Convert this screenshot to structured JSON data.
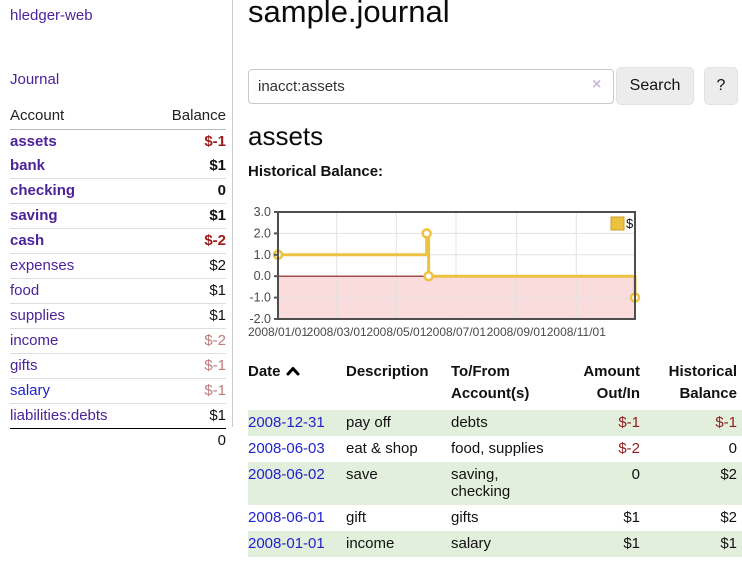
{
  "app": {
    "brand": "hledger-web",
    "nav": {
      "journal": "Journal"
    }
  },
  "sidebar": {
    "header": {
      "account": "Account",
      "balance": "Balance"
    },
    "accounts": [
      {
        "name": "assets",
        "balance": "$-1",
        "row_class": "lvl1 bold",
        "amt_class": "amt-negb"
      },
      {
        "name": "bank",
        "balance": "$1",
        "row_class": "lvl2 bold",
        "amt_class": "amt-b"
      },
      {
        "name": "checking",
        "balance": "0",
        "row_class": "lvl3 bold",
        "amt_class": "amt-b"
      },
      {
        "name": "saving",
        "balance": "$1",
        "row_class": "lvl3 bold",
        "amt_class": "amt-b"
      },
      {
        "name": "cash",
        "balance": "$-2",
        "row_class": "lvl2 bold",
        "amt_class": "amt-negb"
      },
      {
        "name": "expenses",
        "balance": "$2",
        "row_class": "lvl1",
        "amt_class": "amt"
      },
      {
        "name": "food",
        "balance": "$1",
        "row_class": "lvl2",
        "amt_class": "amt"
      },
      {
        "name": "supplies",
        "balance": "$1",
        "row_class": "lvl2",
        "amt_class": "amt"
      },
      {
        "name": "income",
        "balance": "$-2",
        "row_class": "lvl1",
        "amt_class": "amt-negl"
      },
      {
        "name": "gifts",
        "balance": "$-1",
        "row_class": "lvl2",
        "amt_class": "amt-negl"
      },
      {
        "name": "salary",
        "balance": "$-1",
        "row_class": "lvl2 blue-link",
        "amt_class": "amt-negl"
      },
      {
        "name": "liabilities:debts",
        "balance": "$1",
        "row_class": "lvl1",
        "amt_class": "amt"
      }
    ],
    "total": "0"
  },
  "main": {
    "title": "sample.journal",
    "search": {
      "value": "inacct:assets",
      "clear_icon": "×",
      "button_label": "Search",
      "help_label": "?"
    },
    "account_heading": "assets",
    "chart_label": "Historical Balance:"
  },
  "chart_data": {
    "type": "line",
    "step": true,
    "title": "Historical Balance:",
    "x_domain": [
      "2008-01-01",
      "2008-12-31"
    ],
    "x_ticks": [
      {
        "date": "2008-01-01",
        "label": "2008/01/01"
      },
      {
        "date": "2008-03-01",
        "label": "2008/03/01"
      },
      {
        "date": "2008-05-01",
        "label": "2008/05/01"
      },
      {
        "date": "2008-07-01",
        "label": "2008/07/01"
      },
      {
        "date": "2008-09-01",
        "label": "2008/09/01"
      },
      {
        "date": "2008-11-01",
        "label": "2008/11/01"
      }
    ],
    "y_ticks": [
      {
        "value": 3,
        "label": "3.0"
      },
      {
        "value": 2,
        "label": "2.0"
      },
      {
        "value": 1,
        "label": "1.0"
      },
      {
        "value": 0,
        "label": "0.0"
      },
      {
        "value": -1,
        "label": "-1.0"
      },
      {
        "value": -2,
        "label": "-2.0"
      }
    ],
    "ylim": [
      -2,
      3
    ],
    "series": [
      {
        "name": "$",
        "color": "#edc240",
        "marker_fill": "#ffffff",
        "points": [
          {
            "date": "2008-01-01",
            "value": 1
          },
          {
            "date": "2008-06-01",
            "value": 2
          },
          {
            "date": "2008-06-03",
            "value": 0
          },
          {
            "date": "2008-12-31",
            "value": -1
          }
        ]
      }
    ],
    "legend": {
      "label": "$",
      "color": "#edc240",
      "position": "top-right"
    },
    "negative_region_fill": "#fadcdc",
    "zero_line_color": "#8b1a1a",
    "grid_color": "#e0e0e0",
    "border_color": "#4d4d4d",
    "tick_label_color": "#4a4a4a",
    "grid": true
  },
  "register": {
    "headers": {
      "date": "Date",
      "description": "Description",
      "accounts": "To/From\nAccount(s)",
      "amount": "Amount\nOut/In",
      "balance": "Historical\nBalance"
    },
    "rows": [
      {
        "date": "2008-12-31",
        "description": "pay off",
        "accounts": "debts",
        "amount": "$-1",
        "balance": "$-1",
        "row_class": "striped",
        "amount_class": "neg",
        "balance_class": "neg"
      },
      {
        "date": "2008-06-03",
        "description": "eat & shop",
        "accounts": "food, supplies",
        "amount": "$-2",
        "balance": "0",
        "row_class": "",
        "amount_class": "neg",
        "balance_class": ""
      },
      {
        "date": "2008-06-02",
        "description": "save",
        "accounts": "saving,\nchecking",
        "amount": "0",
        "balance": "$2",
        "row_class": "striped",
        "amount_class": "",
        "balance_class": ""
      },
      {
        "date": "2008-06-01",
        "description": "gift",
        "accounts": "gifts",
        "amount": "$1",
        "balance": "$2",
        "row_class": "",
        "amount_class": "",
        "balance_class": ""
      },
      {
        "date": "2008-01-01",
        "description": "income",
        "accounts": "salary",
        "amount": "$1",
        "balance": "$1",
        "row_class": "striped",
        "amount_class": "",
        "balance_class": ""
      }
    ]
  },
  "colors": {
    "link_purple": "#4d2399",
    "link_blue": "#2222cc",
    "negative_strong": "#9c1b1b",
    "negative_soft": "#c07a7a",
    "table_stripe_green": "#e3efdd",
    "series_gold": "#edc240",
    "chart_negative_pink": "#fadcdc"
  }
}
